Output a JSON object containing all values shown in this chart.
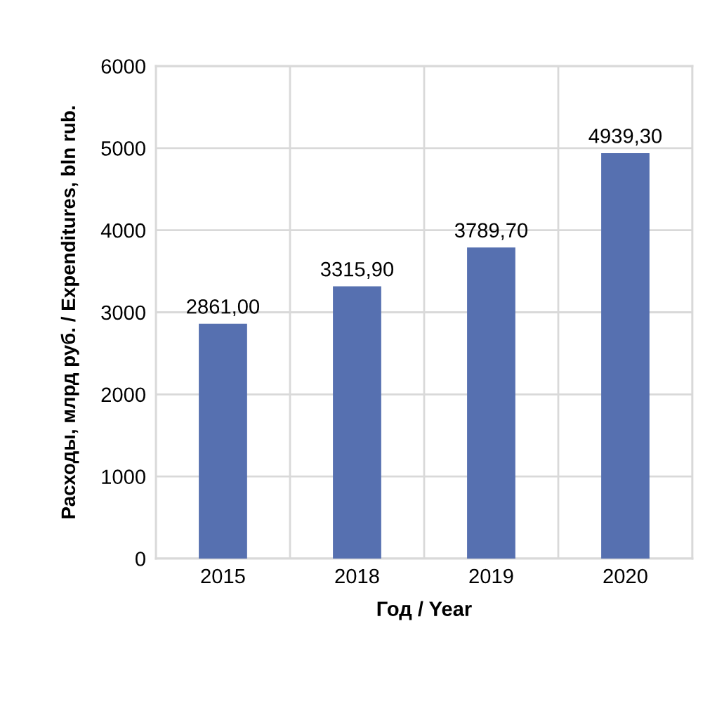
{
  "chart_data": {
    "type": "bar",
    "xlabel": "Год / Year",
    "ylabel": "Расходы, млрд руб. / Expenditures, bln rub.",
    "categories": [
      "2015",
      "2018",
      "2019",
      "2020"
    ],
    "values": [
      2861.0,
      3315.9,
      3789.7,
      4939.3
    ],
    "value_labels": [
      "2861,00",
      "3315,90",
      "3789,70",
      "4939,30"
    ],
    "color": "#5670b0",
    "ylim": [
      0,
      6000
    ],
    "yticks": [
      0,
      1000,
      2000,
      3000,
      4000,
      5000,
      6000
    ],
    "grid": true,
    "legend": false
  }
}
